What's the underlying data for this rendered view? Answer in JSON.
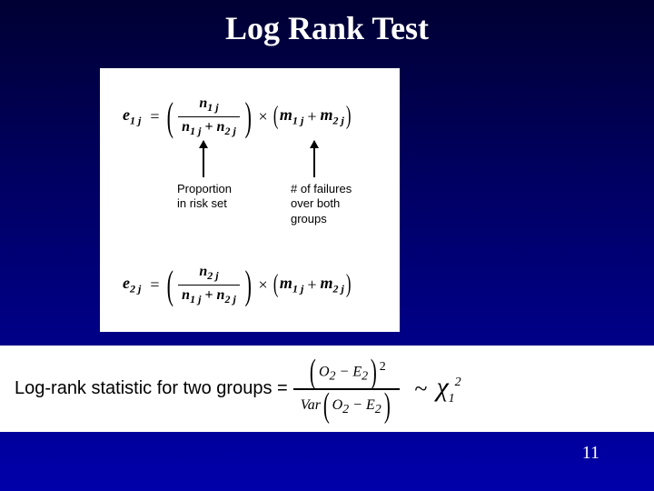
{
  "slide": {
    "title": "Log Rank Test",
    "page_number": "11",
    "background_gradient_top": "#000033",
    "background_gradient_bottom": "#0000aa",
    "formula_box": {
      "eq1": {
        "lhs_var": "e",
        "lhs_sub": "1 j",
        "frac_num_var": "n",
        "frac_num_sub": "1 j",
        "frac_den_left_var": "n",
        "frac_den_left_sub": "1 j",
        "frac_den_plus": "+",
        "frac_den_right_var": "n",
        "frac_den_right_sub": "2 j",
        "mult_sign": "×",
        "m_left_var": "m",
        "m_left_sub": "1 j",
        "m_plus": "+",
        "m_right_var": "m",
        "m_right_sub": "2 j"
      },
      "eq2": {
        "lhs_var": "e",
        "lhs_sub": "2 j",
        "frac_num_var": "n",
        "frac_num_sub": "2 j",
        "frac_den_left_var": "n",
        "frac_den_left_sub": "1 j",
        "frac_den_plus": "+",
        "frac_den_right_var": "n",
        "frac_den_right_sub": "2 j",
        "mult_sign": "×",
        "m_left_var": "m",
        "m_left_sub": "1 j",
        "m_plus": "+",
        "m_right_var": "m",
        "m_right_sub": "2 j"
      },
      "annotation1_line1": "Proportion",
      "annotation1_line2": "in risk set",
      "annotation2_line1": "# of failures",
      "annotation2_line2": "over both",
      "annotation2_line3": "groups"
    },
    "stat": {
      "label": "Log-rank statistic for two groups  =",
      "O": "O",
      "E": "E",
      "sub2": "2",
      "minus": "−",
      "sup2": "2",
      "Var": "Var",
      "sim": "~",
      "chi": "χ",
      "chi_sub": "1",
      "chi_sup": "2"
    }
  }
}
